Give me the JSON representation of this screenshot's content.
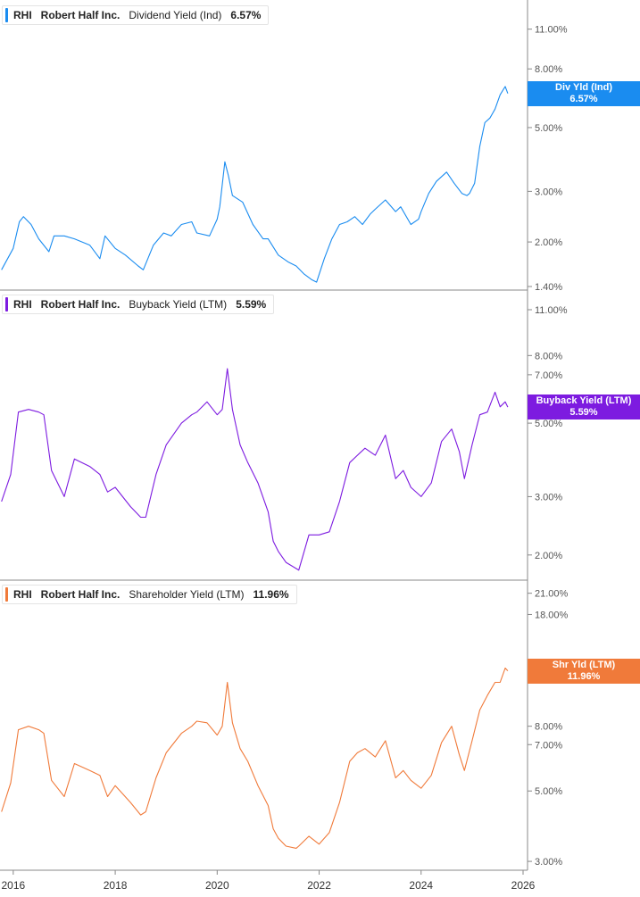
{
  "x_axis": {
    "ticks": [
      "2016",
      "2018",
      "2020",
      "2022",
      "2024",
      "2026"
    ]
  },
  "chart_data": [
    {
      "type": "line",
      "legend": {
        "ticker": "RHI",
        "company": "Robert Half Inc.",
        "metric": "Dividend Yield (Ind)",
        "value": "6.57%"
      },
      "color": "#1a8cf0",
      "scale": "log",
      "ylim": [
        1.38,
        13.5
      ],
      "yticks": [
        {
          "v": 11.0,
          "label": "11.00%"
        },
        {
          "v": 8.0,
          "label": "8.00%"
        },
        {
          "v": 5.0,
          "label": "5.00%"
        },
        {
          "v": 3.0,
          "label": "3.00%"
        },
        {
          "v": 2.0,
          "label": "2.00%"
        },
        {
          "v": 1.4,
          "label": "1.40%"
        }
      ],
      "last_tag": {
        "line1": "Div Yld (Ind)",
        "line2": "6.57%",
        "value": 6.57
      },
      "series": [
        {
          "x": [
            2015.77,
            2016.0,
            2016.12,
            2016.2,
            2016.35,
            2016.5,
            2016.7,
            2016.8,
            2017.0,
            2017.2,
            2017.5,
            2017.7,
            2017.8,
            2018.0,
            2018.2,
            2018.45,
            2018.55,
            2018.75,
            2018.95,
            2019.1,
            2019.3,
            2019.5,
            2019.6,
            2019.85,
            2020.0,
            2020.05,
            2020.15,
            2020.22,
            2020.3,
            2020.5,
            2020.7,
            2020.9,
            2021.0,
            2021.2,
            2021.4,
            2021.55,
            2021.7,
            2021.85,
            2021.95,
            2022.1,
            2022.25,
            2022.4,
            2022.55,
            2022.7,
            2022.85,
            2023.0,
            2023.1,
            2023.3,
            2023.5,
            2023.6,
            2023.8,
            2023.95,
            2024.0,
            2024.15,
            2024.3,
            2024.5,
            2024.65,
            2024.8,
            2024.9,
            2024.95,
            2025.05,
            2025.15,
            2025.25,
            2025.35,
            2025.45,
            2025.55,
            2025.65,
            2025.7
          ],
          "y": [
            1.6,
            1.9,
            2.35,
            2.45,
            2.3,
            2.05,
            1.85,
            2.1,
            2.1,
            2.05,
            1.95,
            1.75,
            2.1,
            1.9,
            1.8,
            1.65,
            1.6,
            1.95,
            2.15,
            2.1,
            2.3,
            2.35,
            2.15,
            2.1,
            2.4,
            2.65,
            3.8,
            3.4,
            2.9,
            2.75,
            2.3,
            2.05,
            2.05,
            1.8,
            1.7,
            1.65,
            1.55,
            1.48,
            1.45,
            1.75,
            2.05,
            2.3,
            2.35,
            2.45,
            2.3,
            2.5,
            2.6,
            2.8,
            2.55,
            2.65,
            2.3,
            2.4,
            2.55,
            2.95,
            3.25,
            3.5,
            3.2,
            2.95,
            2.9,
            2.95,
            3.2,
            4.3,
            5.2,
            5.4,
            5.8,
            6.5,
            6.95,
            6.57
          ]
        }
      ]
    },
    {
      "type": "line",
      "legend": {
        "ticker": "RHI",
        "company": "Robert Half Inc.",
        "metric": "Buyback Yield (LTM)",
        "value": "5.59%"
      },
      "color": "#7d1be0",
      "scale": "log",
      "ylim": [
        1.7,
        12.3
      ],
      "yticks": [
        {
          "v": 11.0,
          "label": "11.00%"
        },
        {
          "v": 8.0,
          "label": "8.00%"
        },
        {
          "v": 7.0,
          "label": "7.00%"
        },
        {
          "v": 5.0,
          "label": "5.00%"
        },
        {
          "v": 3.0,
          "label": "3.00%"
        },
        {
          "v": 2.0,
          "label": "2.00%"
        }
      ],
      "last_tag": {
        "line1": "Buyback Yield (LTM)",
        "line2": "5.59%",
        "value": 5.59
      },
      "series": [
        {
          "x": [
            2015.77,
            2015.95,
            2016.1,
            2016.3,
            2016.5,
            2016.6,
            2016.75,
            2017.0,
            2017.2,
            2017.5,
            2017.7,
            2017.85,
            2018.0,
            2018.3,
            2018.5,
            2018.6,
            2018.8,
            2019.0,
            2019.3,
            2019.5,
            2019.6,
            2019.8,
            2020.0,
            2020.1,
            2020.2,
            2020.3,
            2020.45,
            2020.6,
            2020.8,
            2021.0,
            2021.1,
            2021.2,
            2021.35,
            2021.55,
            2021.6,
            2021.8,
            2022.0,
            2022.2,
            2022.4,
            2022.6,
            2022.75,
            2022.9,
            2023.1,
            2023.3,
            2023.5,
            2023.65,
            2023.8,
            2024.0,
            2024.2,
            2024.4,
            2024.6,
            2024.75,
            2024.85,
            2025.0,
            2025.15,
            2025.3,
            2025.45,
            2025.55,
            2025.65,
            2025.7
          ],
          "y": [
            2.9,
            3.5,
            5.4,
            5.5,
            5.4,
            5.3,
            3.6,
            3.0,
            3.9,
            3.7,
            3.5,
            3.1,
            3.2,
            2.8,
            2.6,
            2.6,
            3.5,
            4.3,
            5.0,
            5.3,
            5.4,
            5.8,
            5.3,
            5.5,
            7.3,
            5.5,
            4.3,
            3.8,
            3.3,
            2.7,
            2.2,
            2.05,
            1.9,
            1.82,
            1.8,
            2.3,
            2.3,
            2.35,
            2.9,
            3.8,
            4.0,
            4.2,
            4.0,
            4.6,
            3.4,
            3.6,
            3.2,
            3.0,
            3.3,
            4.4,
            4.8,
            4.1,
            3.4,
            4.3,
            5.3,
            5.4,
            6.2,
            5.6,
            5.8,
            5.59
          ]
        }
      ]
    },
    {
      "type": "line",
      "legend": {
        "ticker": "RHI",
        "company": "Robert Half Inc.",
        "metric": "Shareholder Yield (LTM)",
        "value": "11.96%"
      },
      "color": "#f07a3a",
      "scale": "log",
      "ylim": [
        2.85,
        22.5
      ],
      "yticks": [
        {
          "v": 21.0,
          "label": "21.00%"
        },
        {
          "v": 18.0,
          "label": "18.00%"
        },
        {
          "v": 8.0,
          "label": "8.00%"
        },
        {
          "v": 7.0,
          "label": "7.00%"
        },
        {
          "v": 5.0,
          "label": "5.00%"
        },
        {
          "v": 3.0,
          "label": "3.00%"
        }
      ],
      "last_tag": {
        "line1": "Shr Yld (LTM)",
        "line2": "11.96%",
        "value": 11.96
      },
      "series": [
        {
          "x": [
            2015.77,
            2015.95,
            2016.1,
            2016.3,
            2016.5,
            2016.6,
            2016.75,
            2017.0,
            2017.2,
            2017.5,
            2017.7,
            2017.85,
            2018.0,
            2018.3,
            2018.5,
            2018.6,
            2018.8,
            2019.0,
            2019.3,
            2019.5,
            2019.6,
            2019.8,
            2020.0,
            2020.1,
            2020.2,
            2020.3,
            2020.45,
            2020.6,
            2020.8,
            2021.0,
            2021.1,
            2021.2,
            2021.35,
            2021.55,
            2021.6,
            2021.8,
            2022.0,
            2022.2,
            2022.4,
            2022.6,
            2022.75,
            2022.9,
            2023.1,
            2023.3,
            2023.5,
            2023.65,
            2023.8,
            2024.0,
            2024.2,
            2024.4,
            2024.6,
            2024.75,
            2024.85,
            2025.0,
            2025.15,
            2025.3,
            2025.45,
            2025.55,
            2025.65,
            2025.7
          ],
          "y": [
            4.3,
            5.3,
            7.8,
            8.0,
            7.8,
            7.6,
            5.4,
            4.8,
            6.1,
            5.8,
            5.6,
            4.8,
            5.2,
            4.6,
            4.2,
            4.3,
            5.5,
            6.6,
            7.6,
            8.0,
            8.3,
            8.2,
            7.5,
            8.0,
            11.0,
            8.2,
            6.8,
            6.2,
            5.2,
            4.5,
            3.8,
            3.55,
            3.35,
            3.3,
            3.35,
            3.6,
            3.4,
            3.7,
            4.6,
            6.2,
            6.6,
            6.8,
            6.4,
            7.2,
            5.5,
            5.8,
            5.4,
            5.1,
            5.6,
            7.1,
            8.0,
            6.5,
            5.8,
            7.2,
            9.0,
            10.0,
            11.0,
            11.0,
            12.2,
            11.96
          ]
        }
      ]
    }
  ]
}
